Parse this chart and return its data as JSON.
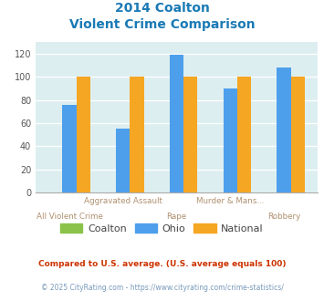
{
  "title_line1": "2014 Coalton",
  "title_line2": "Violent Crime Comparison",
  "categories": [
    "All Violent Crime",
    "Aggravated Assault",
    "Rape",
    "Murder & Mans...",
    "Robbery"
  ],
  "label_top": [
    "",
    "Aggravated Assault",
    "",
    "Murder & Mans...",
    ""
  ],
  "label_bottom": [
    "All Violent Crime",
    "",
    "Rape",
    "",
    "Robbery"
  ],
  "coalton_values": [
    0,
    0,
    0,
    0,
    0
  ],
  "ohio_values": [
    76,
    55,
    119,
    90,
    108
  ],
  "national_values": [
    100,
    100,
    100,
    100,
    100
  ],
  "coalton_color": "#8bc34a",
  "ohio_color": "#4d9fec",
  "national_color": "#f5a623",
  "bg_color": "#ddeef0",
  "ylim": [
    0,
    130
  ],
  "yticks": [
    0,
    20,
    40,
    60,
    80,
    100,
    120
  ],
  "title_color": "#1a7ab5",
  "xlabel_color": "#b09070",
  "legend_label_color": "#444444",
  "footnote1": "Compared to U.S. average. (U.S. average equals 100)",
  "footnote2": "© 2025 CityRating.com - https://www.cityrating.com/crime-statistics/",
  "footnote1_color": "#cc3300",
  "footnote2_color": "#7799bb"
}
